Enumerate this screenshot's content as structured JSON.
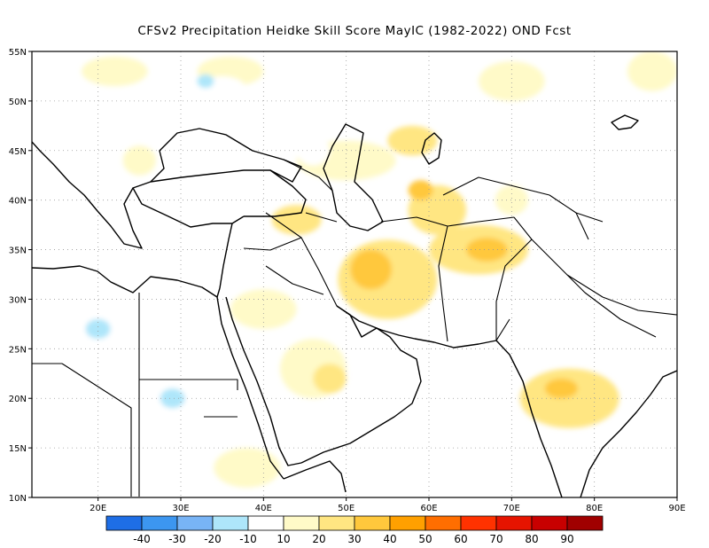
{
  "title": "CFSv2  Precipitation Heidke Skill Score MayIC (1982-2022) OND Fcst",
  "map": {
    "lon_range": [
      12,
      90
    ],
    "lat_range": [
      10,
      55
    ],
    "lon_ticks": [
      {
        "value": 20,
        "label": "20E"
      },
      {
        "value": 30,
        "label": "30E"
      },
      {
        "value": 40,
        "label": "40E"
      },
      {
        "value": 50,
        "label": "50E"
      },
      {
        "value": 60,
        "label": "60E"
      },
      {
        "value": 70,
        "label": "70E"
      },
      {
        "value": 80,
        "label": "80E"
      },
      {
        "value": 90,
        "label": "90E"
      }
    ],
    "lat_ticks": [
      {
        "value": 10,
        "label": "10N"
      },
      {
        "value": 15,
        "label": "15N"
      },
      {
        "value": 20,
        "label": "20N"
      },
      {
        "value": 25,
        "label": "25N"
      },
      {
        "value": 30,
        "label": "30N"
      },
      {
        "value": 35,
        "label": "35N"
      },
      {
        "value": 40,
        "label": "40N"
      },
      {
        "value": 45,
        "label": "45N"
      },
      {
        "value": 50,
        "label": "50N"
      },
      {
        "value": 55,
        "label": "55N"
      }
    ],
    "grid": "dotted",
    "skill_regions": [
      {
        "lon": 55,
        "lat": 32,
        "rlon": 6,
        "rlat": 4,
        "value": 20
      },
      {
        "lon": 53,
        "lat": 33,
        "rlon": 2.5,
        "rlat": 2,
        "value": 30
      },
      {
        "lon": 61,
        "lat": 39,
        "rlon": 3.5,
        "rlat": 2.5,
        "value": 20
      },
      {
        "lon": 66,
        "lat": 35,
        "rlon": 6,
        "rlat": 2.5,
        "value": 20
      },
      {
        "lon": 67,
        "lat": 35,
        "rlon": 2.5,
        "rlat": 1.2,
        "value": 30
      },
      {
        "lon": 59,
        "lat": 41,
        "rlon": 1.5,
        "rlat": 1,
        "value": 30
      },
      {
        "lon": 44,
        "lat": 38,
        "rlon": 3,
        "rlat": 1.5,
        "value": 20
      },
      {
        "lon": 77,
        "lat": 20,
        "rlon": 6,
        "rlat": 3,
        "value": 20
      },
      {
        "lon": 76,
        "lat": 21,
        "rlon": 2,
        "rlat": 1,
        "value": 30
      },
      {
        "lon": 46,
        "lat": 23,
        "rlon": 4,
        "rlat": 3,
        "value": 10
      },
      {
        "lon": 48,
        "lat": 22,
        "rlon": 2,
        "rlat": 1.5,
        "value": 20
      },
      {
        "lon": 40,
        "lat": 29,
        "rlon": 4,
        "rlat": 2,
        "value": 10
      },
      {
        "lon": 50,
        "lat": 44,
        "rlon": 6,
        "rlat": 2,
        "value": 10
      },
      {
        "lon": 58,
        "lat": 46,
        "rlon": 3,
        "rlat": 1.5,
        "value": 20
      },
      {
        "lon": 22,
        "lat": 53,
        "rlon": 4,
        "rlat": 1.5,
        "value": 10
      },
      {
        "lon": 36,
        "lat": 53,
        "rlon": 4,
        "rlat": 1.5,
        "value": 10
      },
      {
        "lon": 70,
        "lat": 52,
        "rlon": 4,
        "rlat": 2,
        "value": 10
      },
      {
        "lon": 87,
        "lat": 53,
        "rlon": 3,
        "rlat": 2,
        "value": 10
      },
      {
        "lon": 70,
        "lat": 40,
        "rlon": 2,
        "rlat": 1.5,
        "value": 10
      },
      {
        "lon": 38,
        "lat": 13,
        "rlon": 4,
        "rlat": 2,
        "value": 10
      },
      {
        "lon": 25,
        "lat": 44,
        "rlon": 2,
        "rlat": 1.5,
        "value": 10
      },
      {
        "lon": 20,
        "lat": 27,
        "rlon": 6,
        "rlat": 4,
        "value": -10
      },
      {
        "lon": 20,
        "lat": 27,
        "rlon": 1.5,
        "rlat": 1,
        "value": -20
      },
      {
        "lon": 30,
        "lat": 20,
        "rlon": 4,
        "rlat": 3,
        "value": -10
      },
      {
        "lon": 29,
        "lat": 20,
        "rlon": 1.5,
        "rlat": 1,
        "value": -20
      },
      {
        "lon": 28,
        "lat": 25,
        "rlon": 2,
        "rlat": 1.5,
        "value": -10
      },
      {
        "lon": 21,
        "lat": 15,
        "rlon": 5,
        "rlat": 2,
        "value": -10
      },
      {
        "lon": 63,
        "lat": 28,
        "rlon": 3,
        "rlat": 2,
        "value": -10
      },
      {
        "lon": 73,
        "lat": 25,
        "rlon": 2,
        "rlat": 1,
        "value": -10
      },
      {
        "lon": 87,
        "lat": 33,
        "rlon": 3,
        "rlat": 2,
        "value": -10
      },
      {
        "lon": 84,
        "lat": 42,
        "rlon": 3,
        "rlat": 2,
        "value": -10
      },
      {
        "lon": 46,
        "lat": 45,
        "rlon": 2,
        "rlat": 1.5,
        "value": -10
      },
      {
        "lon": 35,
        "lat": 51,
        "rlon": 3,
        "rlat": 1.5,
        "value": -10
      },
      {
        "lon": 33,
        "lat": 52,
        "rlon": 1,
        "rlat": 0.7,
        "value": -20
      },
      {
        "lon": 14,
        "lat": 53,
        "rlon": 2,
        "rlat": 2,
        "value": -10
      },
      {
        "lon": 87,
        "lat": 45,
        "rlon": 3,
        "rlat": 2,
        "value": -10
      },
      {
        "lon": 77,
        "lat": 10,
        "rlon": 4,
        "rlat": 1.5,
        "value": -10
      },
      {
        "lon": 15,
        "lat": 13,
        "rlon": 3,
        "rlat": 3,
        "value": -10
      },
      {
        "lon": 14,
        "lat": 30,
        "rlon": 2,
        "rlat": 2,
        "value": -10
      }
    ]
  },
  "colorbar": {
    "swatches": [
      {
        "value": -50,
        "color": "#1e6ee6"
      },
      {
        "value": -40,
        "color": "#3c96f0"
      },
      {
        "value": -30,
        "color": "#78b4f6"
      },
      {
        "value": -20,
        "color": "#aee6fa"
      },
      {
        "value": -10,
        "color": "#ffffff"
      },
      {
        "value": 10,
        "color": "#fffac8"
      },
      {
        "value": 20,
        "color": "#ffe682"
      },
      {
        "value": 30,
        "color": "#ffc83c"
      },
      {
        "value": 40,
        "color": "#ffa000"
      },
      {
        "value": 50,
        "color": "#ff6e00"
      },
      {
        "value": 60,
        "color": "#ff3200"
      },
      {
        "value": 70,
        "color": "#e61400"
      },
      {
        "value": 80,
        "color": "#c80000"
      },
      {
        "value": 90,
        "color": "#a00000"
      }
    ],
    "labels": [
      "-40",
      "-30",
      "-20",
      "-10",
      "10",
      "20",
      "30",
      "40",
      "50",
      "60",
      "70",
      "80",
      "90"
    ]
  }
}
